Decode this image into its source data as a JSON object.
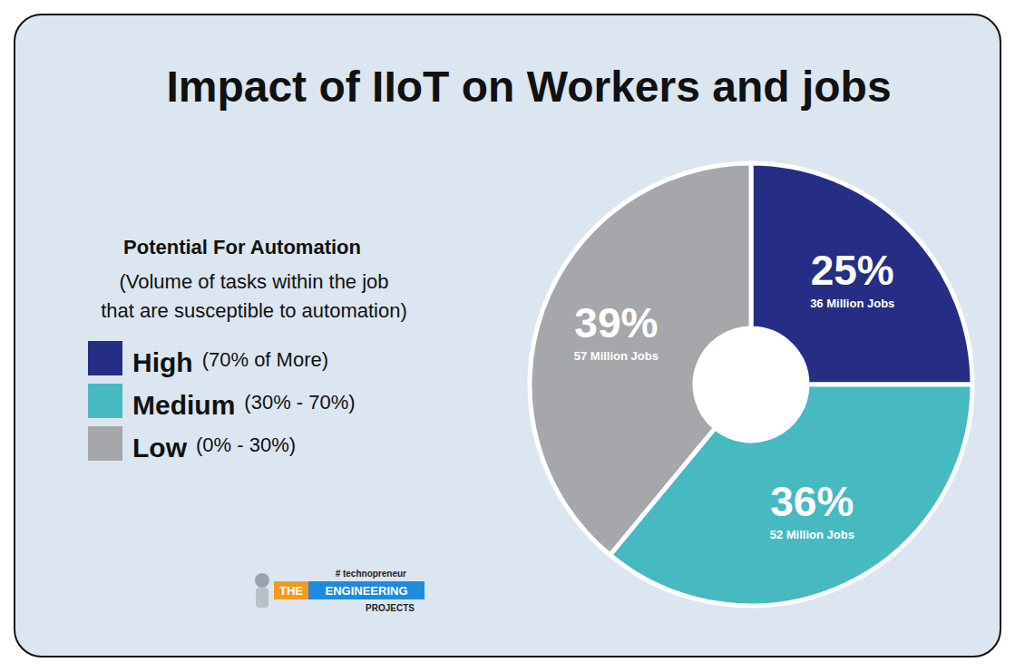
{
  "chart_data": {
    "type": "pie",
    "title": "Impact of IIoT on Workers and jobs",
    "legend_title": "Potential For Automation",
    "legend_note": [
      "(Volume of tasks within the job",
      "that are susceptible to automation)"
    ],
    "categories": [
      "High",
      "Medium",
      "Low"
    ],
    "category_ranges": [
      "(70% of More)",
      "(30% - 70%)",
      "(0% - 30%)"
    ],
    "values": [
      25,
      36,
      39
    ],
    "value_labels": [
      "25%",
      "36%",
      "39%"
    ],
    "job_labels": [
      "36 Million Jobs",
      "52 Million Jobs",
      "57 Million Jobs"
    ],
    "colors": [
      "#252d85",
      "#47b9c1",
      "#a6a7aa"
    ],
    "data_labels": true,
    "legend": "left"
  },
  "logo": {
    "tag": "# technopreneur",
    "words": [
      "THE",
      "ENGINEERING"
    ],
    "sub": "PROJECTS"
  }
}
